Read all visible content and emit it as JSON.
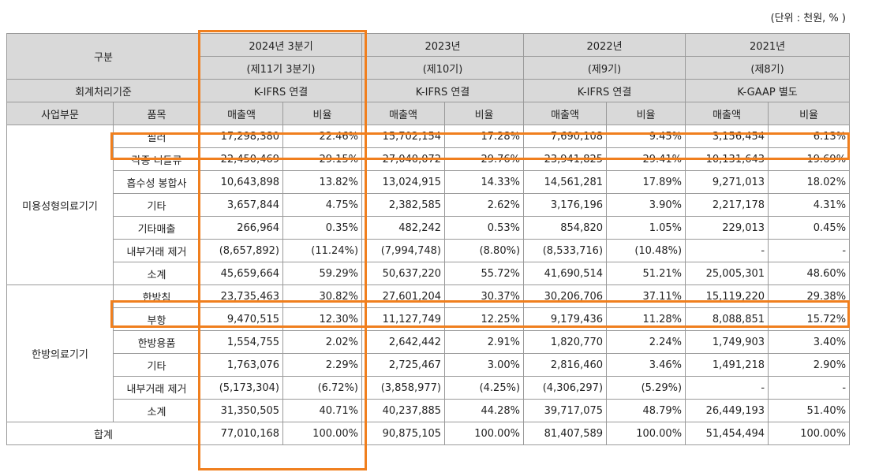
{
  "unit_note": "(단위 : 천원, % )",
  "header": {
    "gubun": "구분",
    "accounting_label": "회계처리기준",
    "division_label": "사업부문",
    "item_label": "품목",
    "periods": [
      {
        "year": "2024년 3분기",
        "term": "(제11기 3분기)",
        "standard": "K-IFRS 연결",
        "sales": "매출액",
        "ratio": "비율"
      },
      {
        "year": "2023년",
        "term": "(제10기)",
        "standard": "K-IFRS 연결",
        "sales": "매출액",
        "ratio": "비율"
      },
      {
        "year": "2022년",
        "term": "(제9기)",
        "standard": "K-IFRS 연결",
        "sales": "매출액",
        "ratio": "비율"
      },
      {
        "year": "2021년",
        "term": "(제8기)",
        "standard": "K-GAAP 별도",
        "sales": "매출액",
        "ratio": "비율"
      }
    ]
  },
  "divisions": [
    {
      "name": "미용성형의료기기",
      "rows": [
        {
          "item": "필러",
          "cells": [
            "17,298,380",
            "22.46%",
            "15,702,154",
            "17.28%",
            "7,690,108",
            "9.45%",
            "3,156,454",
            "6.13%"
          ]
        },
        {
          "item": "각종 니들류",
          "cells": [
            "22,450,469",
            "29.15%",
            "27,040,072",
            "29.76%",
            "23,941,825",
            "29.41%",
            "10,131,643",
            "19.69%"
          ]
        },
        {
          "item": "흡수성 봉합사",
          "cells": [
            "10,643,898",
            "13.82%",
            "13,024,915",
            "14.33%",
            "14,561,281",
            "17.89%",
            "9,271,013",
            "18.02%"
          ]
        },
        {
          "item": "기타",
          "cells": [
            "3,657,844",
            "4.75%",
            "2,382,585",
            "2.62%",
            "3,176,196",
            "3.90%",
            "2,217,178",
            "4.31%"
          ]
        },
        {
          "item": "기타매출",
          "cells": [
            "266,964",
            "0.35%",
            "482,242",
            "0.53%",
            "854,820",
            "1.05%",
            "229,013",
            "0.45%"
          ]
        },
        {
          "item": "내부거래 제거",
          "cells": [
            "(8,657,892)",
            "(11.24%)",
            "(7,994,748)",
            "(8.80%)",
            "(8,533,716)",
            "(10.48%)",
            "-",
            "-"
          ]
        },
        {
          "item": "소계",
          "cells": [
            "45,659,664",
            "59.29%",
            "50,637,220",
            "55.72%",
            "41,690,514",
            "51.21%",
            "25,005,301",
            "48.60%"
          ]
        }
      ]
    },
    {
      "name": "한방의료기기",
      "rows": [
        {
          "item": "한방침",
          "cells": [
            "23,735,463",
            "30.82%",
            "27,601,204",
            "30.37%",
            "30,206,706",
            "37.11%",
            "15,119,220",
            "29.38%"
          ]
        },
        {
          "item": "부항",
          "cells": [
            "9,470,515",
            "12.30%",
            "11,127,749",
            "12.25%",
            "9,179,436",
            "11.28%",
            "8,088,851",
            "15.72%"
          ]
        },
        {
          "item": "한방용품",
          "cells": [
            "1,554,755",
            "2.02%",
            "2,642,442",
            "2.91%",
            "1,820,770",
            "2.24%",
            "1,749,903",
            "3.40%"
          ]
        },
        {
          "item": "기타",
          "cells": [
            "1,763,076",
            "2.29%",
            "2,725,467",
            "3.00%",
            "2,816,460",
            "3.46%",
            "1,491,218",
            "2.90%"
          ]
        },
        {
          "item": "내부거래 제거",
          "cells": [
            "(5,173,304)",
            "(6.72%)",
            "(3,858,977)",
            "(4.25%)",
            "(4,306,297)",
            "(5.29%)",
            "-",
            "-"
          ]
        },
        {
          "item": "소계",
          "cells": [
            "31,350,505",
            "40.71%",
            "40,237,885",
            "44.28%",
            "39,717,075",
            "48.79%",
            "26,449,193",
            "51.40%"
          ]
        }
      ]
    }
  ],
  "total": {
    "label": "합계",
    "cells": [
      "77,010,168",
      "100.00%",
      "90,875,105",
      "100.00%",
      "81,407,589",
      "100.00%",
      "51,454,494",
      "100.00%"
    ]
  },
  "highlight_color": "#f07f1e",
  "header_bg": "#d9d9d9"
}
